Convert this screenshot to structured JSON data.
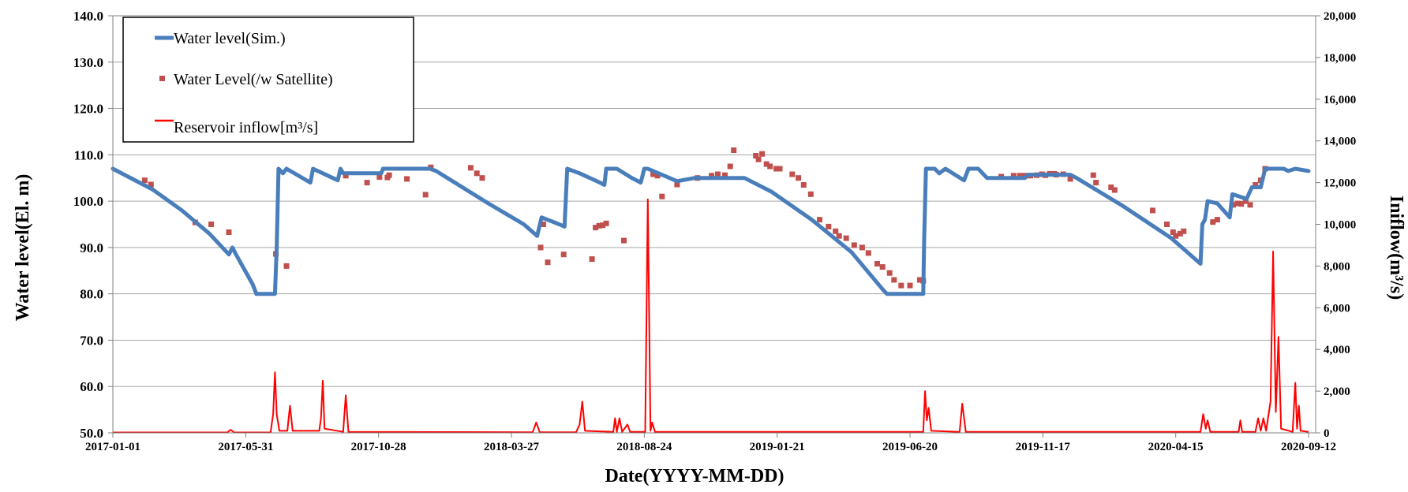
{
  "chart_data": {
    "type": "line",
    "title": "",
    "xlabel": "Date(YYYY-MM-DD)",
    "ylabel": "Water level(El. m)",
    "y2label": "Iniflow(m³/s)",
    "xlim": [
      "2017-01-01",
      "2020-09-20"
    ],
    "ylim": [
      50,
      140
    ],
    "y2lim": [
      0,
      20000
    ],
    "grid": true,
    "legend_position": "top-left",
    "x_ticks": [
      "2017-01-01",
      "2017-05-31",
      "2017-10-28",
      "2018-03-27",
      "2018-08-24",
      "2019-01-21",
      "2019-06-20",
      "2019-11-17",
      "2020-04-15",
      "2020-09-12"
    ],
    "y_ticks": [
      "50.0",
      "60.0",
      "70.0",
      "80.0",
      "90.0",
      "100.0",
      "110.0",
      "120.0",
      "130.0",
      "140.0"
    ],
    "y2_ticks": [
      "0",
      "2,000",
      "4,000",
      "6,000",
      "8,000",
      "10,000",
      "12,000",
      "14,000",
      "16,000",
      "18,000",
      "20,000"
    ],
    "colors": {
      "sim": "#4a7ebb",
      "sat": "#c0504d",
      "inflow": "#ff0000"
    },
    "series": [
      {
        "name": "Water level(Sim.)",
        "type": "line",
        "axis": "left",
        "points": [
          [
            "2017-01-01",
            107.0
          ],
          [
            "2017-02-15",
            102.5
          ],
          [
            "2017-03-20",
            98.0
          ],
          [
            "2017-04-20",
            93.0
          ],
          [
            "2017-05-12",
            88.5
          ],
          [
            "2017-05-16",
            90.0
          ],
          [
            "2017-05-20",
            88.5
          ],
          [
            "2017-06-08",
            82.0
          ],
          [
            "2017-06-12",
            80.0
          ],
          [
            "2017-07-03",
            80.0
          ],
          [
            "2017-07-05",
            90.0
          ],
          [
            "2017-07-07",
            107.0
          ],
          [
            "2017-07-12",
            106.0
          ],
          [
            "2017-07-16",
            107.0
          ],
          [
            "2017-08-12",
            104.0
          ],
          [
            "2017-08-15",
            107.0
          ],
          [
            "2017-09-12",
            104.5
          ],
          [
            "2017-09-15",
            107.0
          ],
          [
            "2017-09-18",
            106.0
          ],
          [
            "2017-10-31",
            106.0
          ],
          [
            "2017-11-02",
            107.0
          ],
          [
            "2017-12-25",
            107.0
          ],
          [
            "2018-01-01",
            106.5
          ],
          [
            "2018-03-01",
            99.5
          ],
          [
            "2018-04-10",
            95.0
          ],
          [
            "2018-04-25",
            92.5
          ],
          [
            "2018-04-30",
            96.5
          ],
          [
            "2018-05-20",
            95.0
          ],
          [
            "2018-05-26",
            94.5
          ],
          [
            "2018-05-29",
            107.0
          ],
          [
            "2018-06-12",
            106.0
          ],
          [
            "2018-07-05",
            104.0
          ],
          [
            "2018-07-10",
            103.5
          ],
          [
            "2018-07-12",
            107.0
          ],
          [
            "2018-07-24",
            107.0
          ],
          [
            "2018-08-10",
            105.0
          ],
          [
            "2018-08-20",
            104.0
          ],
          [
            "2018-08-24",
            107.0
          ],
          [
            "2018-08-28",
            107.0
          ],
          [
            "2018-09-30",
            104.3
          ],
          [
            "2018-10-20",
            105.0
          ],
          [
            "2018-12-15",
            105.0
          ],
          [
            "2019-01-15",
            102.0
          ],
          [
            "2019-03-01",
            96.0
          ],
          [
            "2019-04-15",
            89.0
          ],
          [
            "2019-05-20",
            81.0
          ],
          [
            "2019-05-25",
            80.0
          ],
          [
            "2019-07-05",
            80.0
          ],
          [
            "2019-07-06",
            92.0
          ],
          [
            "2019-07-08",
            107.0
          ],
          [
            "2019-07-18",
            107.0
          ],
          [
            "2019-07-23",
            106.0
          ],
          [
            "2019-07-30",
            107.0
          ],
          [
            "2019-08-20",
            104.5
          ],
          [
            "2019-08-25",
            107.0
          ],
          [
            "2019-09-05",
            107.0
          ],
          [
            "2019-09-15",
            105.0
          ],
          [
            "2019-10-28",
            105.0
          ],
          [
            "2019-10-31",
            105.7
          ],
          [
            "2019-12-18",
            105.7
          ],
          [
            "2019-12-25",
            105.0
          ],
          [
            "2020-02-15",
            99.0
          ],
          [
            "2020-04-10",
            92.0
          ],
          [
            "2020-05-13",
            86.5
          ],
          [
            "2020-05-15",
            95.0
          ],
          [
            "2020-05-18",
            96.0
          ],
          [
            "2020-05-21",
            100.0
          ],
          [
            "2020-06-01",
            99.5
          ],
          [
            "2020-06-15",
            96.5
          ],
          [
            "2020-06-18",
            101.5
          ],
          [
            "2020-07-04",
            100.5
          ],
          [
            "2020-07-10",
            103.0
          ],
          [
            "2020-07-20",
            103.0
          ],
          [
            "2020-07-25",
            107.0
          ],
          [
            "2020-08-15",
            107.0
          ],
          [
            "2020-08-20",
            106.5
          ],
          [
            "2020-08-28",
            107.0
          ],
          [
            "2020-09-12",
            106.5
          ]
        ]
      },
      {
        "name": "Water Level(/w Satellite)",
        "type": "scatter",
        "axis": "left",
        "points": [
          [
            "2017-02-06",
            104.5
          ],
          [
            "2017-02-13",
            103.6
          ],
          [
            "2017-04-04",
            95.4
          ],
          [
            "2017-04-22",
            95.0
          ],
          [
            "2017-05-12",
            93.3
          ],
          [
            "2017-07-04",
            88.6
          ],
          [
            "2017-07-16",
            86.0
          ],
          [
            "2017-09-21",
            105.5
          ],
          [
            "2017-10-15",
            104.0
          ],
          [
            "2017-10-29",
            105.2
          ],
          [
            "2017-11-07",
            105.1
          ],
          [
            "2017-11-09",
            105.6
          ],
          [
            "2017-11-29",
            104.8
          ],
          [
            "2017-12-20",
            101.4
          ],
          [
            "2017-12-26",
            107.3
          ],
          [
            "2018-02-09",
            107.2
          ],
          [
            "2018-02-16",
            106.0
          ],
          [
            "2018-02-22",
            105.0
          ],
          [
            "2018-04-29",
            90.0
          ],
          [
            "2018-05-02",
            95.0
          ],
          [
            "2018-05-07",
            86.8
          ],
          [
            "2018-05-25",
            88.5
          ],
          [
            "2018-06-26",
            87.5
          ],
          [
            "2018-06-30",
            94.3
          ],
          [
            "2018-07-04",
            94.7
          ],
          [
            "2018-07-08",
            94.8
          ],
          [
            "2018-07-12",
            95.2
          ],
          [
            "2018-08-01",
            91.5
          ],
          [
            "2018-09-03",
            105.8
          ],
          [
            "2018-09-08",
            105.5
          ],
          [
            "2018-09-13",
            101.0
          ],
          [
            "2018-09-30",
            103.6
          ],
          [
            "2018-10-23",
            105.0
          ],
          [
            "2018-11-08",
            105.5
          ],
          [
            "2018-11-15",
            105.8
          ],
          [
            "2018-11-23",
            105.6
          ],
          [
            "2018-11-29",
            107.5
          ],
          [
            "2018-12-03",
            111.0
          ],
          [
            "2018-12-28",
            109.8
          ],
          [
            "2018-12-31",
            109.0
          ],
          [
            "2019-01-04",
            110.2
          ],
          [
            "2019-01-09",
            108.0
          ],
          [
            "2019-01-13",
            107.5
          ],
          [
            "2019-01-20",
            107.0
          ],
          [
            "2019-01-24",
            107.0
          ],
          [
            "2019-02-07",
            105.8
          ],
          [
            "2019-02-14",
            105.0
          ],
          [
            "2019-02-20",
            103.5
          ],
          [
            "2019-02-28",
            101.5
          ],
          [
            "2019-03-10",
            96.0
          ],
          [
            "2019-03-20",
            94.5
          ],
          [
            "2019-03-28",
            93.5
          ],
          [
            "2019-04-01",
            92.5
          ],
          [
            "2019-04-09",
            92.0
          ],
          [
            "2019-04-18",
            90.5
          ],
          [
            "2019-04-27",
            90.0
          ],
          [
            "2019-05-04",
            88.8
          ],
          [
            "2019-05-14",
            86.5
          ],
          [
            "2019-05-20",
            85.8
          ],
          [
            "2019-05-28",
            84.5
          ],
          [
            "2019-06-02",
            83.0
          ],
          [
            "2019-06-10",
            81.8
          ],
          [
            "2019-06-20",
            81.8
          ],
          [
            "2019-07-01",
            83.0
          ],
          [
            "2019-07-05",
            82.8
          ],
          [
            "2019-10-01",
            105.3
          ],
          [
            "2019-10-15",
            105.5
          ],
          [
            "2019-10-22",
            105.5
          ],
          [
            "2019-10-28",
            105.5
          ],
          [
            "2019-11-03",
            105.5
          ],
          [
            "2019-11-10",
            105.6
          ],
          [
            "2019-11-16",
            105.8
          ],
          [
            "2019-11-20",
            105.6
          ],
          [
            "2019-11-25",
            105.9
          ],
          [
            "2019-11-30",
            105.9
          ],
          [
            "2019-12-02",
            105.7
          ],
          [
            "2019-12-10",
            105.8
          ],
          [
            "2019-12-18",
            104.8
          ],
          [
            "2020-01-13",
            105.6
          ],
          [
            "2020-01-16",
            104.0
          ],
          [
            "2020-02-02",
            103.0
          ],
          [
            "2020-02-06",
            102.4
          ],
          [
            "2020-03-20",
            98.0
          ],
          [
            "2020-04-05",
            95.0
          ],
          [
            "2020-04-12",
            93.3
          ],
          [
            "2020-04-15",
            92.5
          ],
          [
            "2020-04-20",
            93.0
          ],
          [
            "2020-04-24",
            93.5
          ],
          [
            "2020-05-27",
            95.5
          ],
          [
            "2020-06-01",
            96.0
          ],
          [
            "2020-06-19",
            99.2
          ],
          [
            "2020-06-24",
            99.5
          ],
          [
            "2020-06-28",
            99.4
          ],
          [
            "2020-07-03",
            100.0
          ],
          [
            "2020-07-08",
            99.2
          ],
          [
            "2020-07-14",
            103.5
          ],
          [
            "2020-07-20",
            104.5
          ],
          [
            "2020-07-25",
            107.0
          ]
        ]
      },
      {
        "name": "Reservoir inflow[m³/s]",
        "type": "line",
        "axis": "right",
        "points": [
          [
            "2017-01-01",
            20
          ],
          [
            "2017-05-10",
            20
          ],
          [
            "2017-05-14",
            150
          ],
          [
            "2017-05-18",
            20
          ],
          [
            "2017-06-28",
            20
          ],
          [
            "2017-07-01",
            900
          ],
          [
            "2017-07-03",
            2900
          ],
          [
            "2017-07-05",
            900
          ],
          [
            "2017-07-08",
            100
          ],
          [
            "2017-07-17",
            100
          ],
          [
            "2017-07-20",
            1300
          ],
          [
            "2017-07-23",
            100
          ],
          [
            "2017-08-22",
            100
          ],
          [
            "2017-08-24",
            700
          ],
          [
            "2017-08-26",
            2500
          ],
          [
            "2017-08-28",
            200
          ],
          [
            "2017-09-18",
            50
          ],
          [
            "2017-09-21",
            1800
          ],
          [
            "2017-09-24",
            50
          ],
          [
            "2018-04-20",
            30
          ],
          [
            "2018-04-24",
            500
          ],
          [
            "2018-04-28",
            30
          ],
          [
            "2018-06-08",
            30
          ],
          [
            "2018-06-12",
            400
          ],
          [
            "2018-06-15",
            1500
          ],
          [
            "2018-06-18",
            100
          ],
          [
            "2018-07-20",
            50
          ],
          [
            "2018-07-22",
            700
          ],
          [
            "2018-07-24",
            50
          ],
          [
            "2018-07-27",
            700
          ],
          [
            "2018-07-30",
            50
          ],
          [
            "2018-08-05",
            400
          ],
          [
            "2018-08-08",
            50
          ],
          [
            "2018-08-25",
            50
          ],
          [
            "2018-08-28",
            11200
          ],
          [
            "2018-08-31",
            100
          ],
          [
            "2018-09-02",
            500
          ],
          [
            "2018-09-05",
            50
          ],
          [
            "2019-07-05",
            50
          ],
          [
            "2019-07-07",
            2000
          ],
          [
            "2019-07-09",
            600
          ],
          [
            "2019-07-11",
            1200
          ],
          [
            "2019-07-14",
            100
          ],
          [
            "2019-08-15",
            50
          ],
          [
            "2019-08-18",
            1400
          ],
          [
            "2019-08-22",
            50
          ],
          [
            "2020-05-13",
            50
          ],
          [
            "2020-05-16",
            900
          ],
          [
            "2020-05-19",
            200
          ],
          [
            "2020-05-21",
            600
          ],
          [
            "2020-05-24",
            50
          ],
          [
            "2020-06-25",
            50
          ],
          [
            "2020-06-27",
            600
          ],
          [
            "2020-06-29",
            50
          ],
          [
            "2020-07-14",
            50
          ],
          [
            "2020-07-17",
            700
          ],
          [
            "2020-07-20",
            100
          ],
          [
            "2020-07-23",
            700
          ],
          [
            "2020-07-26",
            100
          ],
          [
            "2020-07-31",
            1500
          ],
          [
            "2020-08-03",
            8700
          ],
          [
            "2020-08-06",
            1000
          ],
          [
            "2020-08-09",
            4600
          ],
          [
            "2020-08-12",
            200
          ],
          [
            "2020-08-25",
            50
          ],
          [
            "2020-08-28",
            2400
          ],
          [
            "2020-08-30",
            200
          ],
          [
            "2020-09-01",
            1300
          ],
          [
            "2020-09-03",
            100
          ],
          [
            "2020-09-12",
            50
          ]
        ]
      }
    ]
  }
}
